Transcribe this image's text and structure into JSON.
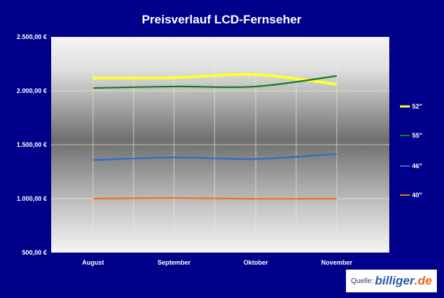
{
  "chart_data": {
    "type": "line",
    "title": "Preisverlauf  LCD-Fernseher",
    "categories": [
      "August",
      "September",
      "Oktober",
      "November"
    ],
    "ylim": [
      500,
      2500
    ],
    "yticks": [
      2500,
      2000,
      1500,
      1000,
      500
    ],
    "ytick_labels": [
      "2.500,00 €",
      "2.000,00 €",
      "1.500,00 €",
      "1.000,00 €",
      "500,00 €"
    ],
    "grid": true,
    "legend_position": "right",
    "series": [
      {
        "name": "52\"",
        "color": "#ffff33",
        "values": [
          2118,
          2122,
          2150,
          2060
        ]
      },
      {
        "name": "55\"",
        "color": "#1a7a1a",
        "values": [
          2026,
          2040,
          2040,
          2138
        ]
      },
      {
        "name": "46\"",
        "color": "#2a6ed0",
        "values": [
          1358,
          1382,
          1368,
          1415
        ]
      },
      {
        "name": "40\"",
        "color": "#f07020",
        "values": [
          1000,
          1006,
          998,
          1000
        ]
      }
    ]
  },
  "source": {
    "label": "Quelle:",
    "brand": "billiger",
    "tld": ".de"
  }
}
